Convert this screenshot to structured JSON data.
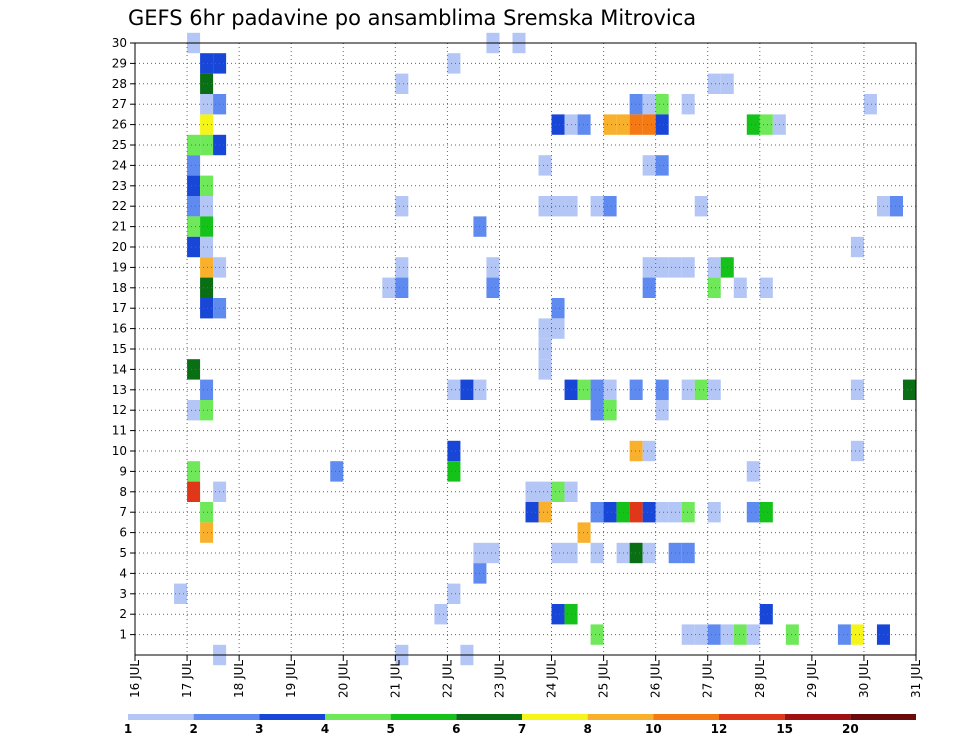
{
  "chart_data": {
    "type": "heatmap",
    "title": "GEFS 6hr padavine po ansamblima Sremska Mitrovica",
    "xlabel": "",
    "ylabel": "",
    "y_range": [
      0,
      30
    ],
    "y_ticks": [
      1,
      2,
      3,
      4,
      5,
      6,
      7,
      8,
      9,
      10,
      11,
      12,
      13,
      14,
      15,
      16,
      17,
      18,
      19,
      20,
      21,
      22,
      23,
      24,
      25,
      26,
      27,
      28,
      29,
      30
    ],
    "x_range_days": [
      16,
      31
    ],
    "x_ticks": [
      "16 JUL",
      "17 JUL",
      "18 JUL",
      "19 JUL",
      "20 JUL",
      "21 JUL",
      "22 JUL",
      "23 JUL",
      "24 JUL",
      "25 JUL",
      "26 JUL",
      "27 JUL",
      "28 JUL",
      "29 JUL",
      "30 JUL",
      "31 JUL"
    ],
    "time_step_hours": 6,
    "grid": true,
    "colorbar": {
      "placement": "bottom",
      "levels": [
        1,
        2,
        3,
        4,
        5,
        6,
        7,
        8,
        10,
        12,
        15,
        20
      ],
      "labels": [
        "1",
        "2",
        "3",
        "4",
        "5",
        "6",
        "7",
        "8",
        "10",
        "12",
        "15",
        "20"
      ],
      "colors": [
        "#b3c6f5",
        "#5f8af0",
        "#1846d6",
        "#6fe85a",
        "#15c21a",
        "#0a6e15",
        "#f5f51a",
        "#f9b12d",
        "#f57a14",
        "#e0361a",
        "#a01010",
        "#6a0a0a"
      ]
    },
    "cells": [
      {
        "member": 30,
        "t": [
          [
            17.0,
            0
          ],
          [
            22.75,
            0
          ],
          [
            23.25,
            0
          ]
        ]
      },
      {
        "member": 29,
        "t": [
          [
            17.25,
            2
          ],
          [
            17.5,
            2
          ],
          [
            22.0,
            0
          ]
        ]
      },
      {
        "member": 28,
        "t": [
          [
            17.25,
            5
          ],
          [
            21.0,
            0
          ],
          [
            27.0,
            0
          ],
          [
            27.25,
            0
          ]
        ]
      },
      {
        "member": 27,
        "t": [
          [
            17.25,
            0
          ],
          [
            17.5,
            1
          ],
          [
            25.5,
            1
          ],
          [
            25.75,
            0
          ],
          [
            26.0,
            3
          ],
          [
            26.5,
            0
          ],
          [
            30.0,
            0
          ]
        ]
      },
      {
        "member": 26,
        "t": [
          [
            17.25,
            6
          ],
          [
            24.0,
            2
          ],
          [
            24.25,
            0
          ],
          [
            24.5,
            1
          ],
          [
            25.0,
            7
          ],
          [
            25.25,
            7
          ],
          [
            25.5,
            8
          ],
          [
            25.75,
            8
          ],
          [
            26.0,
            2
          ],
          [
            27.75,
            4
          ],
          [
            28.0,
            3
          ],
          [
            28.25,
            0
          ]
        ]
      },
      {
        "member": 25,
        "t": [
          [
            17.0,
            3
          ],
          [
            17.25,
            3
          ],
          [
            17.5,
            2
          ]
        ]
      },
      {
        "member": 24,
        "t": [
          [
            17.0,
            1
          ],
          [
            23.75,
            0
          ],
          [
            25.75,
            0
          ],
          [
            26.0,
            1
          ]
        ]
      },
      {
        "member": 23,
        "t": [
          [
            17.0,
            2
          ],
          [
            17.25,
            3
          ]
        ]
      },
      {
        "member": 22,
        "t": [
          [
            17.0,
            1
          ],
          [
            17.25,
            0
          ],
          [
            21.0,
            0
          ],
          [
            23.75,
            0
          ],
          [
            24.0,
            0
          ],
          [
            24.25,
            0
          ],
          [
            24.75,
            0
          ],
          [
            25.0,
            1
          ],
          [
            26.75,
            0
          ],
          [
            30.25,
            0
          ],
          [
            30.5,
            1
          ]
        ]
      },
      {
        "member": 21,
        "t": [
          [
            17.0,
            3
          ],
          [
            17.25,
            4
          ],
          [
            22.5,
            1
          ]
        ]
      },
      {
        "member": 20,
        "t": [
          [
            17.0,
            2
          ],
          [
            17.25,
            0
          ],
          [
            29.75,
            0
          ]
        ]
      },
      {
        "member": 19,
        "t": [
          [
            17.25,
            7
          ],
          [
            17.5,
            0
          ],
          [
            21.0,
            0
          ],
          [
            22.75,
            0
          ],
          [
            25.75,
            0
          ],
          [
            26.0,
            0
          ],
          [
            26.25,
            0
          ],
          [
            26.5,
            0
          ],
          [
            27.0,
            0
          ],
          [
            27.25,
            4
          ]
        ]
      },
      {
        "member": 18,
        "t": [
          [
            17.25,
            5
          ],
          [
            20.75,
            0
          ],
          [
            21.0,
            1
          ],
          [
            22.75,
            1
          ],
          [
            25.75,
            1
          ],
          [
            27.0,
            3
          ],
          [
            27.5,
            0
          ],
          [
            28.0,
            0
          ]
        ]
      },
      {
        "member": 17,
        "t": [
          [
            17.25,
            2
          ],
          [
            17.5,
            1
          ],
          [
            24.0,
            1
          ]
        ]
      },
      {
        "member": 16,
        "t": [
          [
            23.75,
            0
          ],
          [
            24.0,
            0
          ]
        ]
      },
      {
        "member": 15,
        "t": [
          [
            23.75,
            0
          ]
        ]
      },
      {
        "member": 14,
        "t": [
          [
            17.0,
            5
          ],
          [
            23.75,
            0
          ]
        ]
      },
      {
        "member": 13,
        "t": [
          [
            17.25,
            1
          ],
          [
            22.0,
            0
          ],
          [
            22.25,
            2
          ],
          [
            22.5,
            0
          ],
          [
            24.25,
            2
          ],
          [
            24.5,
            3
          ],
          [
            24.75,
            1
          ],
          [
            25.0,
            0
          ],
          [
            25.5,
            1
          ],
          [
            26.0,
            1
          ],
          [
            26.5,
            0
          ],
          [
            26.75,
            3
          ],
          [
            27.0,
            0
          ],
          [
            29.75,
            0
          ],
          [
            30.75,
            5
          ]
        ]
      },
      {
        "member": 12,
        "t": [
          [
            17.0,
            0
          ],
          [
            17.25,
            3
          ],
          [
            24.75,
            1
          ],
          [
            25.0,
            3
          ],
          [
            26.0,
            0
          ]
        ]
      },
      {
        "member": 10,
        "t": [
          [
            22.0,
            2
          ],
          [
            25.5,
            7
          ],
          [
            25.75,
            0
          ],
          [
            29.75,
            0
          ]
        ]
      },
      {
        "member": 9,
        "t": [
          [
            17.0,
            3
          ],
          [
            19.75,
            1
          ],
          [
            22.0,
            4
          ],
          [
            27.75,
            0
          ]
        ]
      },
      {
        "member": 8,
        "t": [
          [
            17.0,
            9
          ],
          [
            17.5,
            0
          ],
          [
            23.5,
            0
          ],
          [
            23.75,
            0
          ],
          [
            24.0,
            3
          ],
          [
            24.25,
            0
          ]
        ]
      },
      {
        "member": 7,
        "t": [
          [
            17.25,
            3
          ],
          [
            23.5,
            2
          ],
          [
            23.75,
            7
          ],
          [
            24.75,
            1
          ],
          [
            25.0,
            2
          ],
          [
            25.25,
            4
          ],
          [
            25.5,
            9
          ],
          [
            25.75,
            2
          ],
          [
            26.0,
            0
          ],
          [
            26.25,
            0
          ],
          [
            26.5,
            3
          ],
          [
            27.0,
            0
          ],
          [
            27.75,
            1
          ],
          [
            28.0,
            4
          ]
        ]
      },
      {
        "member": 6,
        "t": [
          [
            17.25,
            7
          ],
          [
            24.5,
            7
          ]
        ]
      },
      {
        "member": 5,
        "t": [
          [
            22.5,
            0
          ],
          [
            22.75,
            0
          ],
          [
            24.0,
            0
          ],
          [
            24.25,
            0
          ],
          [
            24.75,
            0
          ],
          [
            25.25,
            0
          ],
          [
            25.5,
            5
          ],
          [
            25.75,
            0
          ],
          [
            26.25,
            1
          ],
          [
            26.5,
            1
          ]
        ]
      },
      {
        "member": 4,
        "t": [
          [
            22.5,
            1
          ]
        ]
      },
      {
        "member": 3,
        "t": [
          [
            16.75,
            0
          ],
          [
            22.0,
            0
          ]
        ]
      },
      {
        "member": 2,
        "t": [
          [
            21.75,
            0
          ],
          [
            24.0,
            2
          ],
          [
            24.25,
            4
          ],
          [
            28.0,
            2
          ]
        ]
      },
      {
        "member": 1,
        "t": [
          [
            24.75,
            3
          ],
          [
            26.5,
            0
          ],
          [
            26.75,
            0
          ],
          [
            27.0,
            1
          ],
          [
            27.25,
            0
          ],
          [
            27.5,
            3
          ],
          [
            27.75,
            0
          ],
          [
            28.5,
            3
          ],
          [
            29.5,
            1
          ],
          [
            29.75,
            6
          ],
          [
            30.25,
            2
          ]
        ]
      },
      {
        "member": 0,
        "t": [
          [
            17.5,
            0
          ],
          [
            21.0,
            0
          ],
          [
            22.25,
            0
          ]
        ]
      }
    ]
  }
}
